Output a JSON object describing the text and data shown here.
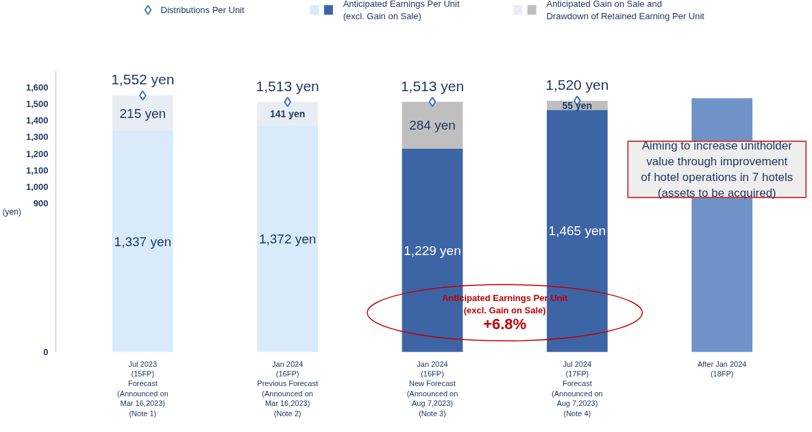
{
  "chart_data": {
    "type": "bar",
    "stacked": true,
    "ylabel": "(yen)",
    "legend": "top",
    "categories": [
      "Jul 2023\n(15FP)\nForecast\n(Announced on\nMar 16,2023)\n(Note 1)",
      "Jan 2024\n(16FP)\nPrevious Forecast\n(Announced on\nMar 16,2023)\n(Note 2)",
      "Jan 2024\n(16FP)\nNew Forecast\n(Announced on\nAug 7,2023)\n(Note 3)",
      "Jul 2024\n(17FP)\nForecast\n(Announced on\nAug 7,2023)\n(Note 4)",
      "After Jan 2024\n(18FP)"
    ],
    "ylim": [
      0,
      1700
    ],
    "yticks": [
      0,
      900,
      {
        "value": 1000,
        "label": "1,000"
      },
      {
        "value": 1100,
        "label": "1,100"
      },
      {
        "value": 1200,
        "label": "1,200"
      },
      {
        "value": 1300,
        "label": "1,300"
      },
      {
        "value": 1400,
        "label": "1,400"
      },
      {
        "value": 1500,
        "label": "1,500"
      },
      {
        "value": 1600,
        "label": "1,600"
      }
    ],
    "grid": false,
    "series": [
      {
        "name": "Anticipated Earnings Per Unit\n(excl. Gain on Sale)",
        "colors": [
          "#d9ebfb",
          "#d9ebfb",
          "#3d65a5",
          "#3d65a5",
          null
        ],
        "values": [
          1337,
          1372,
          1229,
          1465,
          null
        ],
        "value_labels": [
          "1,337 yen",
          "1,372 yen",
          "1,229 yen",
          "1,465 yen",
          null
        ]
      },
      {
        "name": "Anticipated Gain on Sale and\nDrawdown of Retained Earning Per Unit",
        "colors": [
          "#e8edf4",
          "#e8edf4",
          "#bfbfbf",
          "#bfbfbf",
          null
        ],
        "values": [
          215,
          141,
          284,
          55,
          null
        ],
        "value_labels": [
          "215 yen",
          "141 yen",
          "284 yen",
          "55 yen",
          null
        ]
      },
      {
        "color": "#6f93c8",
        "values": [
          null,
          null,
          null,
          null,
          1535
        ]
      },
      {
        "name": "Distributions Per Unit",
        "type": "scatter",
        "marker": "diamond",
        "color": "#4472c4",
        "values": [
          1552,
          1513,
          1513,
          1520,
          null
        ],
        "value_labels": [
          "1,552 yen",
          "1,513 yen",
          "1,513 yen",
          "1,520 yen",
          null
        ]
      }
    ],
    "annotations": [
      "Anticipated Earnings Per Unit\n(excl. Gain on Sale)",
      "+6.8%",
      "Aiming to increase unitholder\nvalue through improvement\nof hotel operations in 7 hotels\n(assets to be acquired)"
    ]
  }
}
